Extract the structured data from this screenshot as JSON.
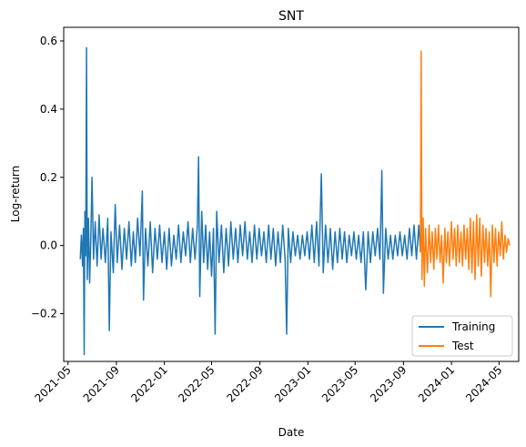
{
  "chart_data": {
    "type": "line",
    "title": "SNT",
    "xlabel": "Date",
    "ylabel": "Log-return",
    "xlim": [
      "2021-04-20",
      "2024-06-20"
    ],
    "ylim": [
      -0.34,
      0.64
    ],
    "x_ticks": [
      "2021-05",
      "2021-09",
      "2022-01",
      "2022-05",
      "2022-09",
      "2023-01",
      "2023-05",
      "2023-09",
      "2024-01",
      "2024-05"
    ],
    "y_ticks": [
      -0.2,
      0.0,
      0.2,
      0.4,
      0.6
    ],
    "y_tick_labels": [
      "−0.2",
      "0.0",
      "0.2",
      "0.4",
      "0.6"
    ],
    "grid": false,
    "legend": "lower-right",
    "series": [
      {
        "name": "Training",
        "color": "#1f77b4",
        "points": [
          [
            "2021-06-01",
            -0.04
          ],
          [
            "2021-06-04",
            0.03
          ],
          [
            "2021-06-07",
            -0.06
          ],
          [
            "2021-06-09",
            0.05
          ],
          [
            "2021-06-11",
            -0.32
          ],
          [
            "2021-06-13",
            0.1
          ],
          [
            "2021-06-15",
            -0.03
          ],
          [
            "2021-06-17",
            0.58
          ],
          [
            "2021-06-19",
            -0.1
          ],
          [
            "2021-06-22",
            0.08
          ],
          [
            "2021-06-25",
            -0.11
          ],
          [
            "2021-06-28",
            0.02
          ],
          [
            "2021-07-01",
            0.2
          ],
          [
            "2021-07-05",
            -0.04
          ],
          [
            "2021-07-09",
            0.07
          ],
          [
            "2021-07-14",
            -0.06
          ],
          [
            "2021-07-19",
            0.09
          ],
          [
            "2021-07-24",
            -0.04
          ],
          [
            "2021-07-29",
            0.05
          ],
          [
            "2021-08-04",
            -0.05
          ],
          [
            "2021-08-10",
            0.08
          ],
          [
            "2021-08-14",
            -0.25
          ],
          [
            "2021-08-18",
            0.04
          ],
          [
            "2021-08-24",
            -0.08
          ],
          [
            "2021-08-29",
            0.12
          ],
          [
            "2021-09-03",
            -0.05
          ],
          [
            "2021-09-09",
            0.06
          ],
          [
            "2021-09-15",
            -0.07
          ],
          [
            "2021-09-21",
            0.05
          ],
          [
            "2021-09-27",
            -0.04
          ],
          [
            "2021-10-03",
            0.07
          ],
          [
            "2021-10-09",
            -0.06
          ],
          [
            "2021-10-14",
            0.04
          ],
          [
            "2021-10-19",
            -0.05
          ],
          [
            "2021-10-25",
            0.08
          ],
          [
            "2021-10-31",
            -0.03
          ],
          [
            "2021-11-06",
            0.16
          ],
          [
            "2021-11-09",
            -0.16
          ],
          [
            "2021-11-14",
            0.05
          ],
          [
            "2021-11-20",
            -0.06
          ],
          [
            "2021-11-26",
            0.07
          ],
          [
            "2021-12-02",
            -0.08
          ],
          [
            "2021-12-08",
            0.05
          ],
          [
            "2021-12-14",
            -0.04
          ],
          [
            "2021-12-20",
            0.06
          ],
          [
            "2021-12-26",
            -0.05
          ],
          [
            "2022-01-01",
            0.04
          ],
          [
            "2022-01-07",
            -0.07
          ],
          [
            "2022-01-13",
            0.05
          ],
          [
            "2022-01-19",
            -0.06
          ],
          [
            "2022-01-25",
            0.03
          ],
          [
            "2022-01-31",
            -0.04
          ],
          [
            "2022-02-06",
            0.06
          ],
          [
            "2022-02-12",
            -0.05
          ],
          [
            "2022-02-18",
            0.04
          ],
          [
            "2022-02-24",
            -0.03
          ],
          [
            "2022-03-02",
            0.07
          ],
          [
            "2022-03-08",
            -0.05
          ],
          [
            "2022-03-14",
            0.05
          ],
          [
            "2022-03-20",
            -0.04
          ],
          [
            "2022-03-26",
            0.06
          ],
          [
            "2022-03-29",
            0.26
          ],
          [
            "2022-04-01",
            -0.15
          ],
          [
            "2022-04-06",
            0.1
          ],
          [
            "2022-04-11",
            -0.05
          ],
          [
            "2022-04-16",
            0.06
          ],
          [
            "2022-04-21",
            -0.07
          ],
          [
            "2022-04-26",
            0.04
          ],
          [
            "2022-05-01",
            -0.09
          ],
          [
            "2022-05-06",
            0.05
          ],
          [
            "2022-05-10",
            -0.26
          ],
          [
            "2022-05-14",
            0.1
          ],
          [
            "2022-05-20",
            -0.05
          ],
          [
            "2022-05-26",
            0.06
          ],
          [
            "2022-06-01",
            -0.08
          ],
          [
            "2022-06-07",
            0.05
          ],
          [
            "2022-06-13",
            -0.06
          ],
          [
            "2022-06-19",
            0.07
          ],
          [
            "2022-06-25",
            -0.04
          ],
          [
            "2022-07-01",
            0.05
          ],
          [
            "2022-07-07",
            -0.05
          ],
          [
            "2022-07-13",
            0.06
          ],
          [
            "2022-07-19",
            -0.03
          ],
          [
            "2022-07-25",
            0.07
          ],
          [
            "2022-07-31",
            -0.04
          ],
          [
            "2022-08-06",
            0.04
          ],
          [
            "2022-08-12",
            -0.05
          ],
          [
            "2022-08-18",
            0.06
          ],
          [
            "2022-08-24",
            -0.04
          ],
          [
            "2022-08-30",
            0.05
          ],
          [
            "2022-09-05",
            -0.03
          ],
          [
            "2022-09-11",
            0.04
          ],
          [
            "2022-09-17",
            -0.05
          ],
          [
            "2022-09-23",
            0.06
          ],
          [
            "2022-09-29",
            -0.04
          ],
          [
            "2022-10-05",
            0.05
          ],
          [
            "2022-10-11",
            -0.06
          ],
          [
            "2022-10-17",
            0.04
          ],
          [
            "2022-10-23",
            -0.05
          ],
          [
            "2022-10-29",
            0.06
          ],
          [
            "2022-11-04",
            -0.04
          ],
          [
            "2022-11-08",
            -0.26
          ],
          [
            "2022-11-12",
            0.05
          ],
          [
            "2022-11-18",
            -0.05
          ],
          [
            "2022-11-24",
            0.04
          ],
          [
            "2022-11-30",
            -0.03
          ],
          [
            "2022-12-06",
            0.03
          ],
          [
            "2022-12-12",
            -0.04
          ],
          [
            "2022-12-18",
            0.03
          ],
          [
            "2022-12-24",
            -0.03
          ],
          [
            "2022-12-30",
            0.04
          ],
          [
            "2023-01-05",
            -0.04
          ],
          [
            "2023-01-11",
            0.06
          ],
          [
            "2023-01-17",
            -0.05
          ],
          [
            "2023-01-23",
            0.07
          ],
          [
            "2023-01-29",
            -0.06
          ],
          [
            "2023-02-04",
            0.21
          ],
          [
            "2023-02-09",
            -0.08
          ],
          [
            "2023-02-15",
            0.06
          ],
          [
            "2023-02-21",
            -0.05
          ],
          [
            "2023-02-27",
            0.05
          ],
          [
            "2023-03-05",
            -0.07
          ],
          [
            "2023-03-11",
            0.04
          ],
          [
            "2023-03-17",
            -0.05
          ],
          [
            "2023-03-23",
            0.05
          ],
          [
            "2023-03-29",
            -0.04
          ],
          [
            "2023-04-04",
            0.04
          ],
          [
            "2023-04-10",
            -0.05
          ],
          [
            "2023-04-16",
            0.03
          ],
          [
            "2023-04-22",
            -0.03
          ],
          [
            "2023-04-28",
            0.04
          ],
          [
            "2023-05-04",
            -0.04
          ],
          [
            "2023-05-10",
            0.03
          ],
          [
            "2023-05-16",
            -0.05
          ],
          [
            "2023-05-22",
            0.04
          ],
          [
            "2023-05-28",
            -0.13
          ],
          [
            "2023-06-03",
            0.04
          ],
          [
            "2023-06-09",
            -0.05
          ],
          [
            "2023-06-15",
            0.04
          ],
          [
            "2023-06-21",
            -0.03
          ],
          [
            "2023-06-27",
            0.05
          ],
          [
            "2023-07-03",
            -0.04
          ],
          [
            "2023-07-08",
            0.22
          ],
          [
            "2023-07-12",
            -0.14
          ],
          [
            "2023-07-18",
            0.05
          ],
          [
            "2023-07-24",
            -0.04
          ],
          [
            "2023-07-30",
            0.03
          ],
          [
            "2023-08-05",
            -0.04
          ],
          [
            "2023-08-11",
            0.03
          ],
          [
            "2023-08-17",
            -0.03
          ],
          [
            "2023-08-23",
            0.04
          ],
          [
            "2023-08-29",
            -0.03
          ],
          [
            "2023-09-04",
            0.03
          ],
          [
            "2023-09-10",
            -0.04
          ],
          [
            "2023-09-16",
            0.05
          ],
          [
            "2023-09-22",
            -0.03
          ],
          [
            "2023-09-28",
            0.06
          ],
          [
            "2023-10-04",
            -0.04
          ],
          [
            "2023-10-10",
            0.06
          ],
          [
            "2023-10-14",
            -0.02
          ]
        ]
      },
      {
        "name": "Test",
        "color": "#ff7f0e",
        "points": [
          [
            "2023-10-14",
            -0.02
          ],
          [
            "2023-10-16",
            0.57
          ],
          [
            "2023-10-18",
            -0.1
          ],
          [
            "2023-10-21",
            0.08
          ],
          [
            "2023-10-24",
            -0.12
          ],
          [
            "2023-10-27",
            0.05
          ],
          [
            "2023-11-01",
            -0.08
          ],
          [
            "2023-11-05",
            0.06
          ],
          [
            "2023-11-09",
            -0.05
          ],
          [
            "2023-11-13",
            0.04
          ],
          [
            "2023-11-17",
            -0.07
          ],
          [
            "2023-11-21",
            0.05
          ],
          [
            "2023-11-25",
            -0.04
          ],
          [
            "2023-11-29",
            0.06
          ],
          [
            "2023-12-03",
            -0.05
          ],
          [
            "2023-12-07",
            0.03
          ],
          [
            "2023-12-11",
            -0.11
          ],
          [
            "2023-12-15",
            0.05
          ],
          [
            "2023-12-19",
            -0.05
          ],
          [
            "2023-12-23",
            0.04
          ],
          [
            "2023-12-27",
            -0.06
          ],
          [
            "2024-01-01",
            0.07
          ],
          [
            "2024-01-05",
            -0.04
          ],
          [
            "2024-01-09",
            0.05
          ],
          [
            "2024-01-13",
            -0.06
          ],
          [
            "2024-01-17",
            0.06
          ],
          [
            "2024-01-21",
            -0.05
          ],
          [
            "2024-01-25",
            0.04
          ],
          [
            "2024-01-29",
            -0.06
          ],
          [
            "2024-02-02",
            0.06
          ],
          [
            "2024-02-06",
            -0.04
          ],
          [
            "2024-02-10",
            0.05
          ],
          [
            "2024-02-14",
            -0.07
          ],
          [
            "2024-02-18",
            0.08
          ],
          [
            "2024-02-22",
            -0.08
          ],
          [
            "2024-02-26",
            0.07
          ],
          [
            "2024-03-01",
            -0.1
          ],
          [
            "2024-03-05",
            0.09
          ],
          [
            "2024-03-09",
            -0.06
          ],
          [
            "2024-03-13",
            0.08
          ],
          [
            "2024-03-17",
            -0.09
          ],
          [
            "2024-03-21",
            0.06
          ],
          [
            "2024-03-25",
            -0.05
          ],
          [
            "2024-03-29",
            0.05
          ],
          [
            "2024-04-02",
            -0.06
          ],
          [
            "2024-04-06",
            0.04
          ],
          [
            "2024-04-10",
            -0.15
          ],
          [
            "2024-04-14",
            0.06
          ],
          [
            "2024-04-18",
            -0.05
          ],
          [
            "2024-04-22",
            0.05
          ],
          [
            "2024-04-26",
            -0.06
          ],
          [
            "2024-04-30",
            0.04
          ],
          [
            "2024-05-04",
            -0.03
          ],
          [
            "2024-05-08",
            0.07
          ],
          [
            "2024-05-12",
            -0.04
          ],
          [
            "2024-05-16",
            0.03
          ],
          [
            "2024-05-20",
            -0.02
          ],
          [
            "2024-05-24",
            0.02
          ],
          [
            "2024-05-28",
            0.0
          ]
        ]
      }
    ]
  }
}
